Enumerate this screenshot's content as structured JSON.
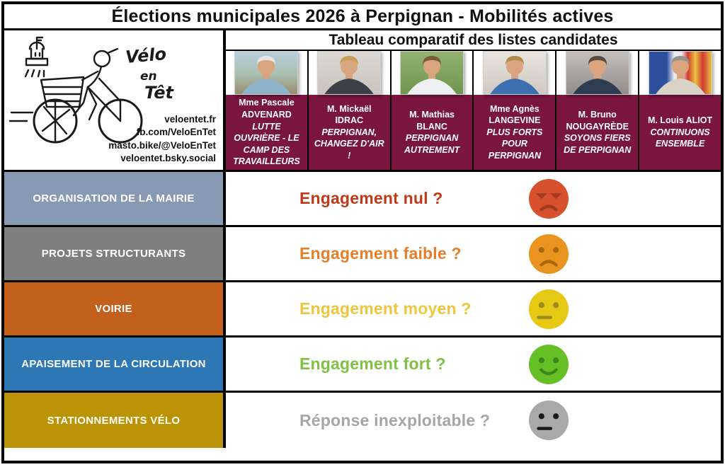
{
  "title": "Élections municipales 2026 à Perpignan - Mobilités actives",
  "subtitle": "Tableau comparatif des listes candidates",
  "logo": {
    "name": [
      "Vélo",
      "en",
      "Têt"
    ],
    "contacts": [
      "veloentet.fr",
      "fb.com/VeloEnTet",
      "masto.bike/@VeloEnTet",
      "veloentet.bsky.social"
    ]
  },
  "candidates": [
    {
      "name": "Mme Pascale ADVENARD",
      "list": "LUTTE OUVRIÈRE - LE CAMP DES TRAVAILLEURS",
      "photo": {
        "bg": "linear-gradient(180deg,#b9cfdd 0%,#a9bfae 55%,#9b8a6c 100%)",
        "hair": "#e8e6e1",
        "jacket": "#8fb3c9"
      }
    },
    {
      "name": "M. Mickaël IDRAC",
      "list": "PERPIGNAN, CHANGEZ D'AIR !",
      "photo": {
        "bg": "linear-gradient(180deg,#dcd8d3 0%,#c9c4bd 100%)",
        "hair": "#c79e58",
        "jacket": "#3c4148"
      }
    },
    {
      "name": "M. Mathias BLANC",
      "list": "PERPIGNAN AUTREMENT",
      "photo": {
        "bg": "linear-gradient(180deg,#93b370 0%,#6e9551 100%)",
        "hair": "#7a5b3a",
        "jacket": "#eef0f2"
      }
    },
    {
      "name": "Mme Agnès LANGEVINE",
      "list": "PLUS FORTS POUR PERPIGNAN",
      "photo": {
        "bg": "linear-gradient(180deg,#e8e4de 0%,#cfc9c1 100%)",
        "hair": "#b08a48",
        "jacket": "#3e6fb0"
      }
    },
    {
      "name": "M. Bruno NOUGAYRÈDE",
      "list": "SOYONS FIERS DE PERPIGNAN",
      "photo": {
        "bg": "linear-gradient(180deg,#c2bfbc 0%,#8f8c89 100%)",
        "hair": "#574a3e",
        "jacket": "#2e3d52"
      }
    },
    {
      "name": "M. Louis ALIOT",
      "list": "CONTINUONS ENSEMBLE",
      "photo": {
        "bg": "linear-gradient(90deg,#2c4f9e 0%,#2c4f9e 28%,#e9e9ee 40%,#e9e9ee 52%,#d23a32 62%,#e9c33f 74%,#d23a32 86%,#e9c33f 100%)",
        "hair": "#98938c",
        "jacket": "#d9d3c5"
      }
    }
  ],
  "rows": [
    {
      "label": "ORGANISATION DE LA MAIRIE",
      "label_bg": "#8799b3",
      "legend": "Engagement nul ?",
      "legend_color": "#c0391b",
      "emoji": {
        "name": "angry-face-icon",
        "type": "angry",
        "body": "#d8512f",
        "features": "#a23a1f"
      }
    },
    {
      "label": "PROJETS STRUCTURANTS",
      "label_bg": "#7f7f7f",
      "legend": "Engagement faible ?",
      "legend_color": "#e67f2a",
      "emoji": {
        "name": "sad-face-icon",
        "type": "sad",
        "body": "#e9941e",
        "features": "#a8680f"
      }
    },
    {
      "label": "VOIRIE",
      "label_bg": "#c2601c",
      "legend": "Engagement moyen ?",
      "legend_color": "#eec63d",
      "emoji": {
        "name": "neutral-face-icon",
        "type": "neutral",
        "body": "#e6c915",
        "features": "#9d8b20"
      }
    },
    {
      "label": "APAISEMENT DE LA CIRCULATION",
      "label_bg": "#2e77b5",
      "legend": "Engagement fort ?",
      "legend_color": "#7fc142",
      "emoji": {
        "name": "happy-face-icon",
        "type": "happy",
        "body": "#65bf25",
        "features": "#3f861c"
      }
    },
    {
      "label": "STATIONNEMENTS VÉLO",
      "label_bg": "#bb9306",
      "legend": "Réponse inexploitable ?",
      "legend_color": "#a6a6a6",
      "emoji": {
        "name": "neutral-gray-face-icon",
        "type": "neutral",
        "body": "#a9a9a9",
        "features": "#1a1a1a"
      }
    }
  ]
}
